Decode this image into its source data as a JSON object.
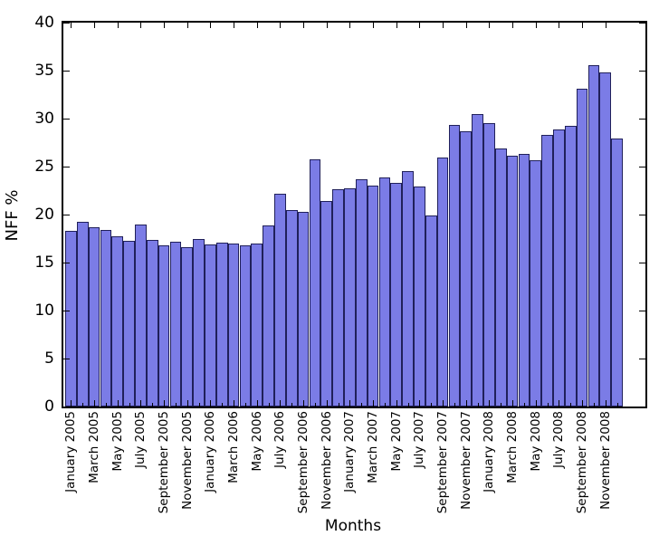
{
  "figure": {
    "xlabel": "Months",
    "ylabel": "NFF %"
  },
  "chart_data": {
    "type": "bar",
    "title": "",
    "xlabel": "Months",
    "ylabel": "NFF %",
    "ylim": [
      0,
      40
    ],
    "yticks": [
      0,
      5,
      10,
      15,
      20,
      25,
      30,
      35,
      40
    ],
    "grid": false,
    "legend": null,
    "bar_color": "#7b7ce6",
    "bar_edge_color": "#20205a",
    "spine_color": "#000000",
    "categories": [
      "January 2005",
      "February 2005",
      "March 2005",
      "April 2005",
      "May 2005",
      "June 2005",
      "July 2005",
      "August 2005",
      "September 2005",
      "October 2005",
      "November 2005",
      "December 2005",
      "January 2006",
      "February 2006",
      "March 2006",
      "April 2006",
      "May 2006",
      "June 2006",
      "July 2006",
      "August 2006",
      "September 2006",
      "October 2006",
      "November 2006",
      "December 2006",
      "January 2007",
      "February 2007",
      "March 2007",
      "April 2007",
      "May 2007",
      "June 2007",
      "July 2007",
      "August 2007",
      "September 2007",
      "October 2007",
      "November 2007",
      "December 2007",
      "January 2008",
      "February 2008",
      "March 2008",
      "April 2008",
      "May 2008",
      "June 2008",
      "July 2008",
      "August 2008",
      "September 2008",
      "October 2008",
      "November 2008",
      "December 2008"
    ],
    "values": [
      18.3,
      19.2,
      18.7,
      18.4,
      17.7,
      17.3,
      19.0,
      17.4,
      16.8,
      17.2,
      16.6,
      17.5,
      16.9,
      17.1,
      17.0,
      16.8,
      17.0,
      18.9,
      22.2,
      20.5,
      20.3,
      25.8,
      21.4,
      22.6,
      22.7,
      23.7,
      23.0,
      23.9,
      23.3,
      24.5,
      22.9,
      19.9,
      25.9,
      29.3,
      28.7,
      30.5,
      29.5,
      26.9,
      26.1,
      26.3,
      25.7,
      28.3,
      28.9,
      29.2,
      33.1,
      35.6,
      34.8,
      27.9
    ],
    "x_tick_labels_shown": [
      "January 2005",
      "March 2005",
      "May 2005",
      "July 2005",
      "September 2005",
      "November 2005",
      "January 2006",
      "March 2006",
      "May 2006",
      "July 2006",
      "September 2006",
      "November 2006",
      "January 2007",
      "March 2007",
      "May 2007",
      "July 2007",
      "September 2007",
      "November 2007",
      "January 2008",
      "March 2008",
      "May 2008",
      "July 2008",
      "September 2008",
      "November 2008"
    ]
  }
}
